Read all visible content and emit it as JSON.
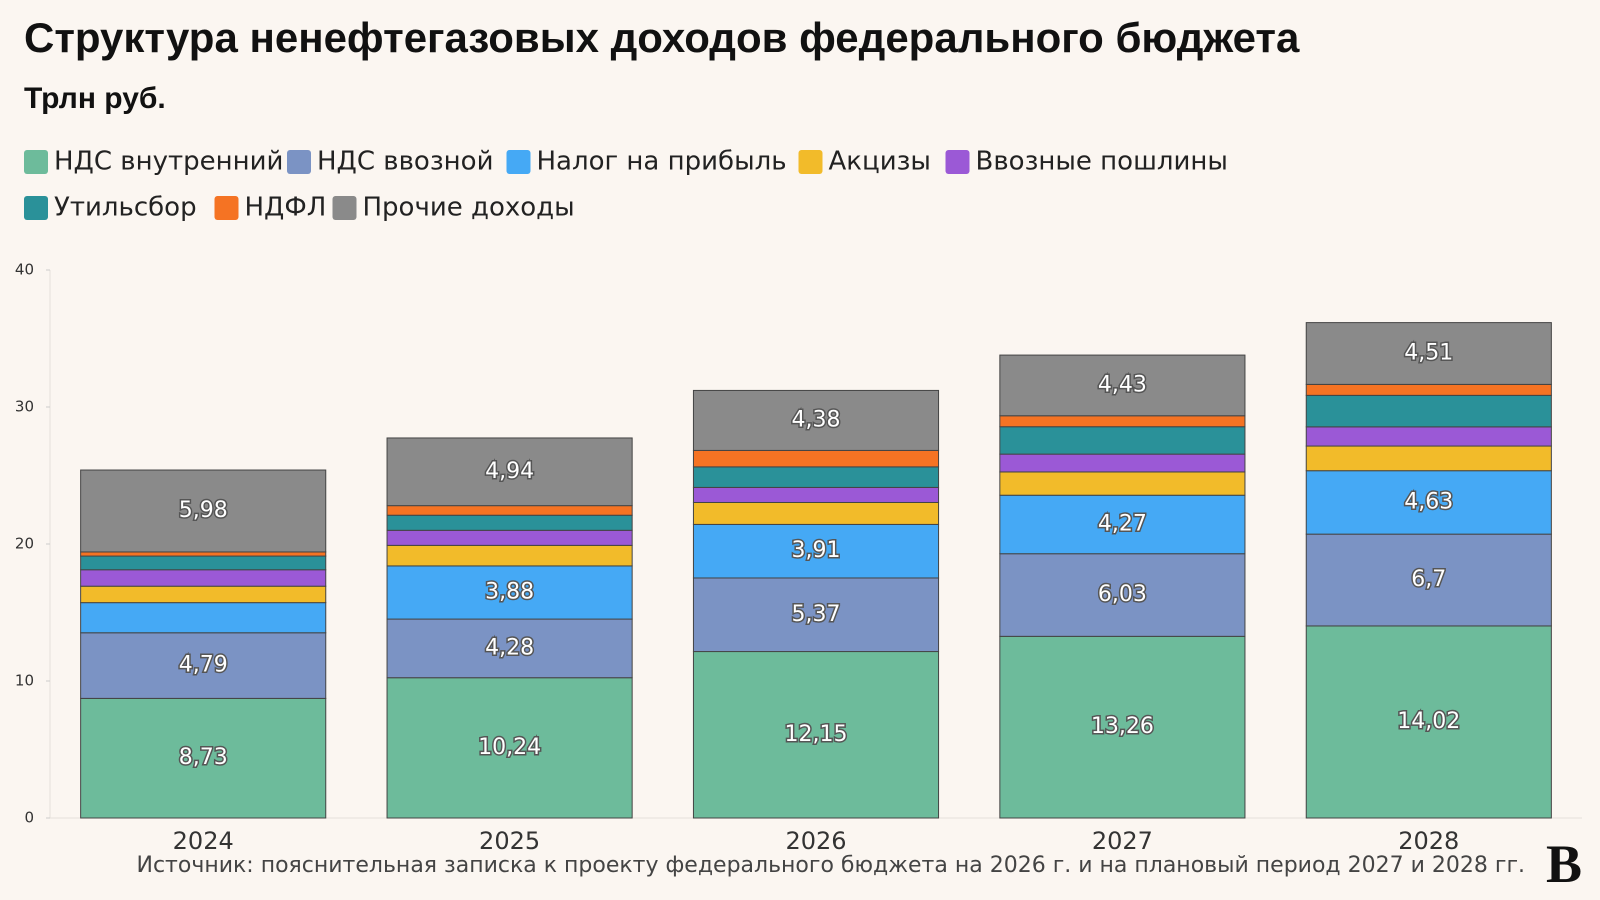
{
  "chart_data": {
    "type": "stacked_bar",
    "title": "Структура ненефтегазовых доходов федерального бюджета",
    "subtitle": "Трлн руб.",
    "source": "Источник: пояснительная записка к проекту федерального бюджета на 2026 г. и на плановый период 2027 и 2028 гг.",
    "logo": "В",
    "categories": [
      "2024",
      "2025",
      "2026",
      "2027",
      "2028"
    ],
    "ylim": [
      0,
      40
    ],
    "yticks": [
      0,
      10,
      20,
      30,
      40
    ],
    "grid": false,
    "series": [
      {
        "name": "НДС внутренний",
        "color": "#6dbb9b",
        "values": [
          8.73,
          10.24,
          12.15,
          13.26,
          14.02
        ],
        "value_labels": [
          "8,73",
          "10,24",
          "12,15",
          "13,26",
          "14,02"
        ]
      },
      {
        "name": "НДС ввозной",
        "color": "#7b93c4",
        "values": [
          4.79,
          4.28,
          5.37,
          6.03,
          6.7
        ],
        "value_labels": [
          "4,79",
          "4,28",
          "5,37",
          "6,03",
          "6,7"
        ]
      },
      {
        "name": "Налог на прибыль",
        "color": "#45a9f5",
        "values": [
          2.2,
          3.88,
          3.91,
          4.27,
          4.63
        ],
        "value_labels": [
          null,
          "3,88",
          "3,91",
          "4,27",
          "4,63"
        ]
      },
      {
        "name": "Акцизы",
        "color": "#f2bb2a",
        "values": [
          1.2,
          1.5,
          1.6,
          1.7,
          1.8
        ]
      },
      {
        "name": "Ввозные пошлины",
        "color": "#9b59d6",
        "values": [
          1.2,
          1.1,
          1.1,
          1.3,
          1.4
        ]
      },
      {
        "name": "Утильсбор",
        "color": "#2a9199",
        "values": [
          1.0,
          1.1,
          1.5,
          2.0,
          2.3
        ]
      },
      {
        "name": "НДФЛ",
        "color": "#f57323",
        "values": [
          0.3,
          0.7,
          1.2,
          0.8,
          0.8
        ]
      },
      {
        "name": "Прочие доходы",
        "color": "#8a8a8a",
        "values": [
          5.98,
          4.94,
          4.38,
          4.43,
          4.51
        ],
        "value_labels": [
          "5,98",
          "4,94",
          "4,38",
          "4,43",
          "4,51"
        ]
      }
    ]
  }
}
